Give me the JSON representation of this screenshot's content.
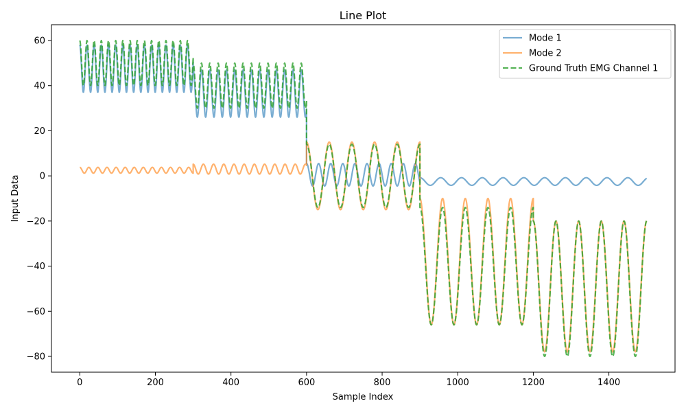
{
  "chart_data": {
    "type": "line",
    "title": "Line Plot",
    "xlabel": "Sample Index",
    "ylabel": "Input Data",
    "xlim": [
      -75,
      1575
    ],
    "ylim": [
      -87,
      67
    ],
    "xticks": [
      0,
      200,
      400,
      600,
      800,
      1000,
      1200,
      1400
    ],
    "xtick_labels": [
      "0",
      "200",
      "400",
      "600",
      "800",
      "1000",
      "1200",
      "1400"
    ],
    "yticks": [
      -80,
      -60,
      -40,
      -20,
      0,
      20,
      40,
      60
    ],
    "ytick_labels": [
      "−80",
      "−60",
      "−40",
      "−20",
      "0",
      "20",
      "40",
      "60"
    ],
    "grid": false,
    "legend_position": "top-right",
    "series": [
      {
        "name": "Mode 1",
        "color": "#1f77b4",
        "dash": "solid",
        "segments": [
          {
            "x_start": 0,
            "x_end": 300,
            "baseline": 47.5,
            "amplitude": 10.5,
            "period": 19
          },
          {
            "x_start": 300,
            "x_end": 600,
            "baseline": 36.5,
            "amplitude": 10.5,
            "period": 22
          },
          {
            "x_start": 600,
            "x_end": 900,
            "baseline": 0.5,
            "amplitude": 5,
            "period": 32
          },
          {
            "x_start": 900,
            "x_end": 1500,
            "baseline": -2.5,
            "amplitude": 1.7,
            "period": 55
          }
        ]
      },
      {
        "name": "Mode 2",
        "color": "#ff7f0e",
        "dash": "solid",
        "segments": [
          {
            "x_start": 0,
            "x_end": 300,
            "baseline": 2.5,
            "amplitude": 1.3,
            "period": 24
          },
          {
            "x_start": 300,
            "x_end": 600,
            "baseline": 3,
            "amplitude": 2.2,
            "period": 27
          },
          {
            "x_start": 600,
            "x_end": 900,
            "baseline": 0,
            "amplitude": 15,
            "period": 60
          },
          {
            "x_start": 900,
            "x_end": 1200,
            "baseline": -38,
            "amplitude": 28,
            "period": 60
          },
          {
            "x_start": 1200,
            "x_end": 1500,
            "baseline": -49,
            "amplitude": 29,
            "period": 60
          }
        ]
      },
      {
        "name": "Ground Truth EMG Channel 1",
        "color": "#2ca02c",
        "dash": "dashed",
        "segments": [
          {
            "x_start": 0,
            "x_end": 300,
            "baseline": 50,
            "amplitude": 10,
            "period": 19
          },
          {
            "x_start": 300,
            "x_end": 600,
            "baseline": 40,
            "amplitude": 10,
            "period": 22
          },
          {
            "x_start": 600,
            "x_end": 900,
            "baseline": 0,
            "amplitude": 14,
            "period": 60
          },
          {
            "x_start": 900,
            "x_end": 1200,
            "baseline": -40,
            "amplitude": 26,
            "period": 60
          },
          {
            "x_start": 1200,
            "x_end": 1500,
            "baseline": -50,
            "amplitude": 30,
            "period": 60
          }
        ]
      }
    ]
  }
}
